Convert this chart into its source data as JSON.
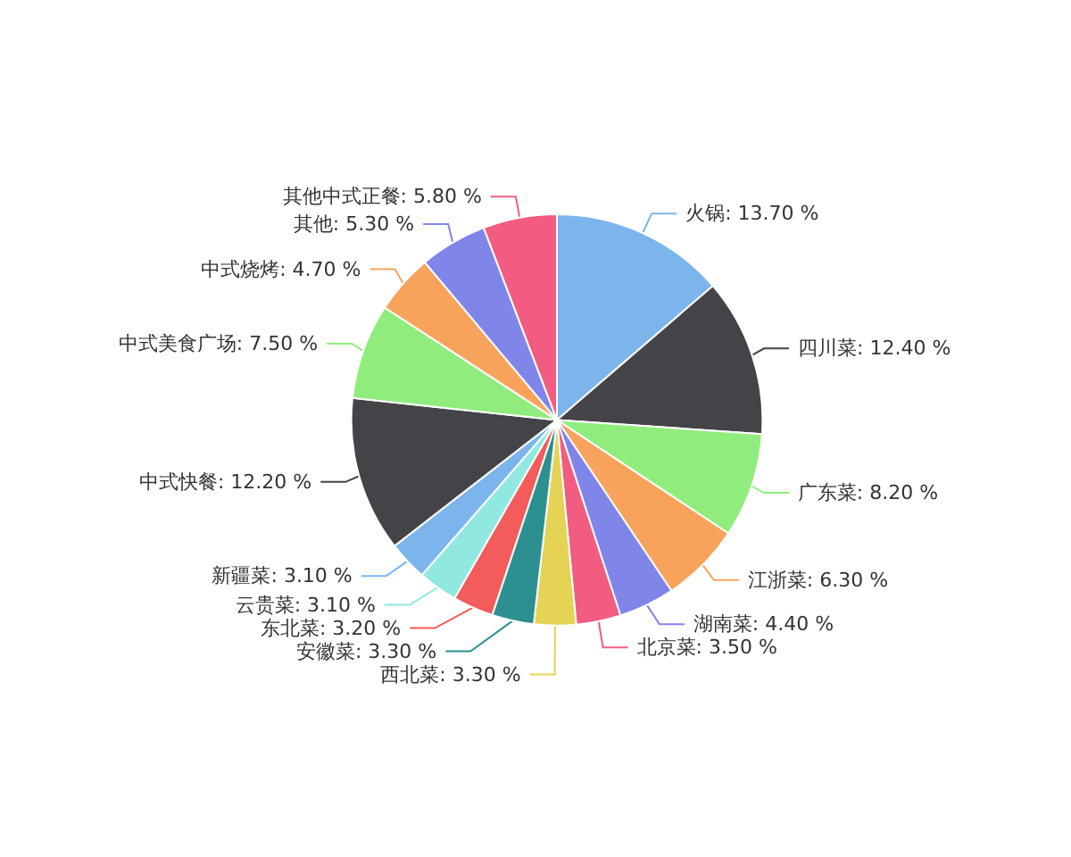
{
  "chart_data": {
    "type": "pie",
    "categories": [
      "火锅",
      "四川菜",
      "广东菜",
      "江浙菜",
      "湖南菜",
      "北京菜",
      "西北菜",
      "安徽菜",
      "东北菜",
      "云贵菜",
      "新疆菜",
      "中式快餐",
      "中式美食广场",
      "中式烧烤",
      "其他",
      "其他中式正餐"
    ],
    "values": [
      13.7,
      12.4,
      8.2,
      6.3,
      4.4,
      3.5,
      3.3,
      3.3,
      3.2,
      3.1,
      3.1,
      12.2,
      7.5,
      4.7,
      5.3,
      5.8
    ],
    "value_labels": [
      "13.70 %",
      "12.40 %",
      "8.20 %",
      "6.30 %",
      "4.40 %",
      "3.50 %",
      "3.30 %",
      "3.30 %",
      "3.20 %",
      "3.10 %",
      "3.10 %",
      "12.20 %",
      "7.50 %",
      "4.70 %",
      "5.30 %",
      "5.80 %"
    ],
    "colors": [
      "#7cb5ec",
      "#434348",
      "#90ed7d",
      "#f7a35c",
      "#8085e9",
      "#f15c80",
      "#e4d354",
      "#2b908f",
      "#f45b5b",
      "#91e8e1",
      "#7cb5ec",
      "#434348",
      "#90ed7d",
      "#f7a35c",
      "#8085e9",
      "#f15c80"
    ],
    "legend": false
  }
}
